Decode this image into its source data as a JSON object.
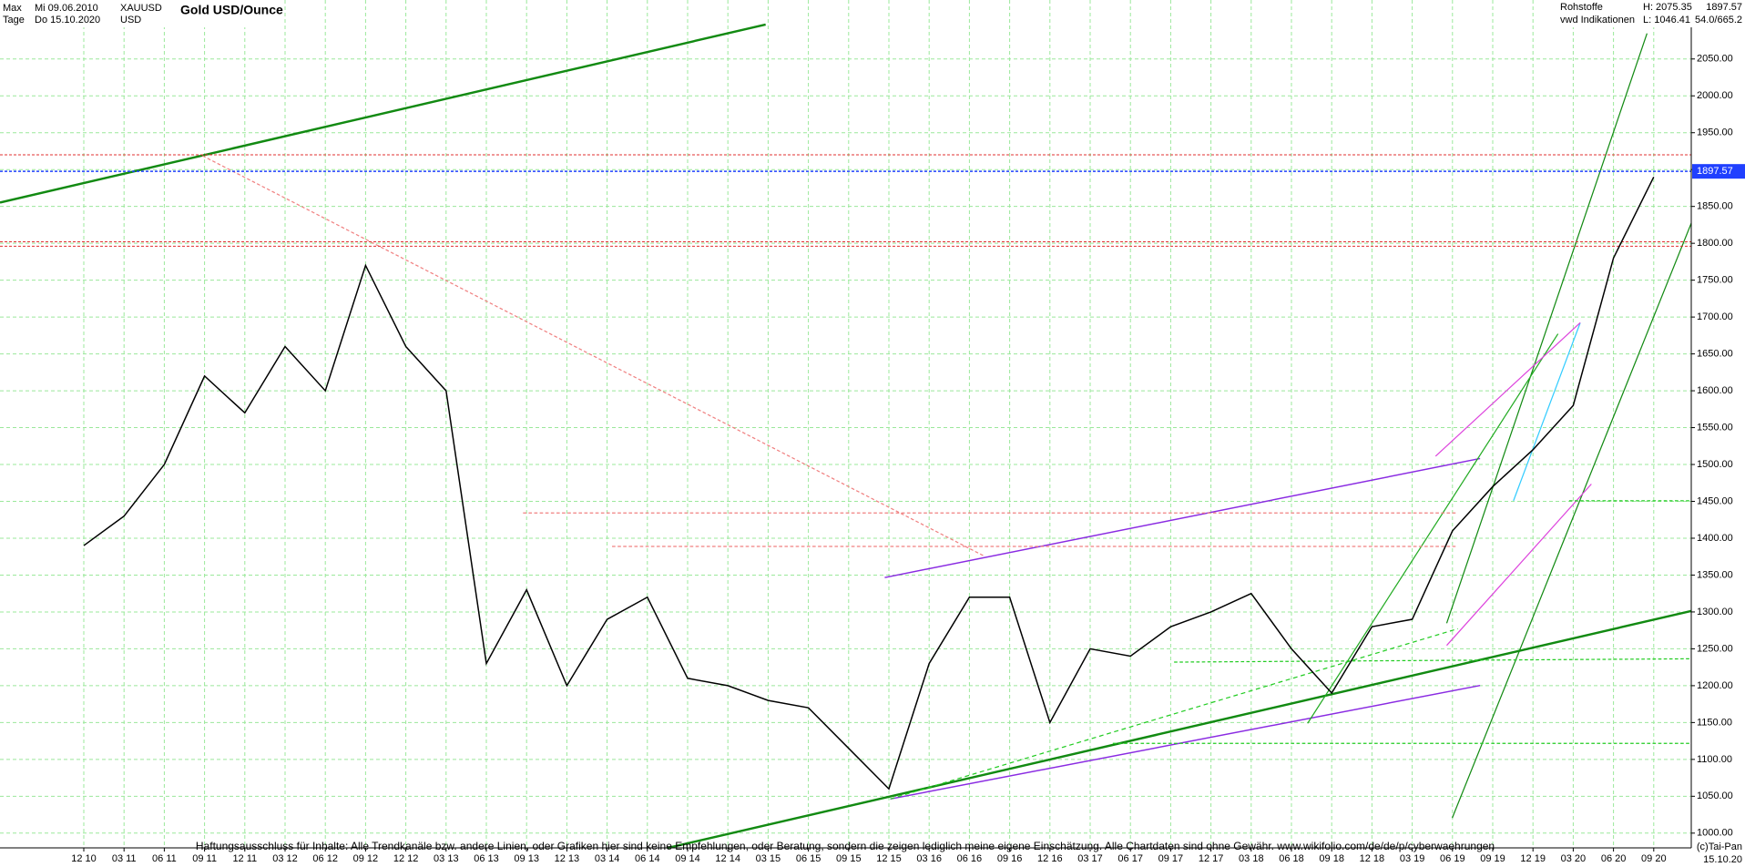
{
  "chart_data": {
    "type": "line",
    "title": "Gold USD/Ounce",
    "header": {
      "range": "Max",
      "start": "Mi 09.06.2010",
      "symbol": "XAUUSD",
      "interval": "Tage",
      "end": "Do 15.10.2020",
      "currency": "USD",
      "group": "Rohstoffe",
      "high": "H: 2075.35",
      "source": "vwd Indikationen",
      "low": "L: 1046.41",
      "extra": "54.0/665.2"
    },
    "last_price": 1897.57,
    "last_date": "15.10.20",
    "categories": [
      "12 10",
      "03 11",
      "06 11",
      "09 11",
      "12 11",
      "03 12",
      "06 12",
      "09 12",
      "12 12",
      "03 13",
      "06 13",
      "09 13",
      "12 13",
      "03 14",
      "06 14",
      "09 14",
      "12 14",
      "03 15",
      "06 15",
      "09 15",
      "12 15",
      "03 16",
      "06 16",
      "09 16",
      "12 16",
      "03 17",
      "06 17",
      "09 17",
      "12 17",
      "03 18",
      "06 18",
      "09 18",
      "12 18",
      "03 19",
      "06 19",
      "09 19",
      "12 19",
      "03 20",
      "06 20",
      "09 20"
    ],
    "series": [
      {
        "name": "XAUUSD",
        "color": "#000000",
        "values": [
          1390,
          1430,
          1500,
          1620,
          1570,
          1660,
          1600,
          1770,
          1660,
          1600,
          1230,
          1330,
          1200,
          1290,
          1320,
          1210,
          1200,
          1180,
          1170,
          1115,
          1060,
          1230,
          1320,
          1320,
          1150,
          1250,
          1240,
          1280,
          1300,
          1325,
          1250,
          1190,
          1280,
          1290,
          1410,
          1470,
          1520,
          1580,
          1780,
          1890
        ]
      }
    ],
    "horizontal_lines": [
      {
        "value": 1920,
        "color": "#e03030"
      },
      {
        "value": 1802,
        "color": "#e03030"
      },
      {
        "value": 1796,
        "color": "#e03030"
      }
    ],
    "last_price_color": "#2040ff",
    "ylim": [
      980,
      2130
    ],
    "yticks": [
      {
        "value": 1000,
        "label": "1000.00"
      },
      {
        "value": 1050,
        "label": "1050.00"
      },
      {
        "value": 1100,
        "label": "1100.00"
      },
      {
        "value": 1150,
        "label": "1150.00"
      },
      {
        "value": 1200,
        "label": "1200.00"
      },
      {
        "value": 1250,
        "label": "1250.00"
      },
      {
        "value": 1300,
        "label": "1300.00"
      },
      {
        "value": 1350,
        "label": "1350.00"
      },
      {
        "value": 1400,
        "label": "1400.00"
      },
      {
        "value": 1450,
        "label": "1450.00"
      },
      {
        "value": 1500,
        "label": "1500.00"
      },
      {
        "value": 1550,
        "label": "1550.00"
      },
      {
        "value": 1600,
        "label": "1600.00"
      },
      {
        "value": 1650,
        "label": "1650.00"
      },
      {
        "value": 1700,
        "label": "1700.00"
      },
      {
        "value": 1750,
        "label": "1750.00"
      },
      {
        "value": 1800,
        "label": "1800.00"
      },
      {
        "value": 1850,
        "label": "1850.00"
      },
      {
        "value": 1900,
        "label": "1900.00"
      },
      {
        "value": 1950,
        "label": "1950.00"
      },
      {
        "value": 2000,
        "label": "2000.00"
      },
      {
        "value": 2050,
        "label": "2050.00"
      }
    ],
    "grid": true,
    "disclaimer": "Haftungsausschluss für Inhalte: Alle Trendkanäle bzw. andere Linien, oder Grafiken hier sind keine Empfehlungen, oder Beratung, sondern die zeigen lediglich meine eigene Einschätzung. Alle Chartdaten sind ohne Gewähr.  www.wikifolio.com/de/de/p/cyberwaehrungen",
    "copyright": "(c)Tai-Pan"
  }
}
